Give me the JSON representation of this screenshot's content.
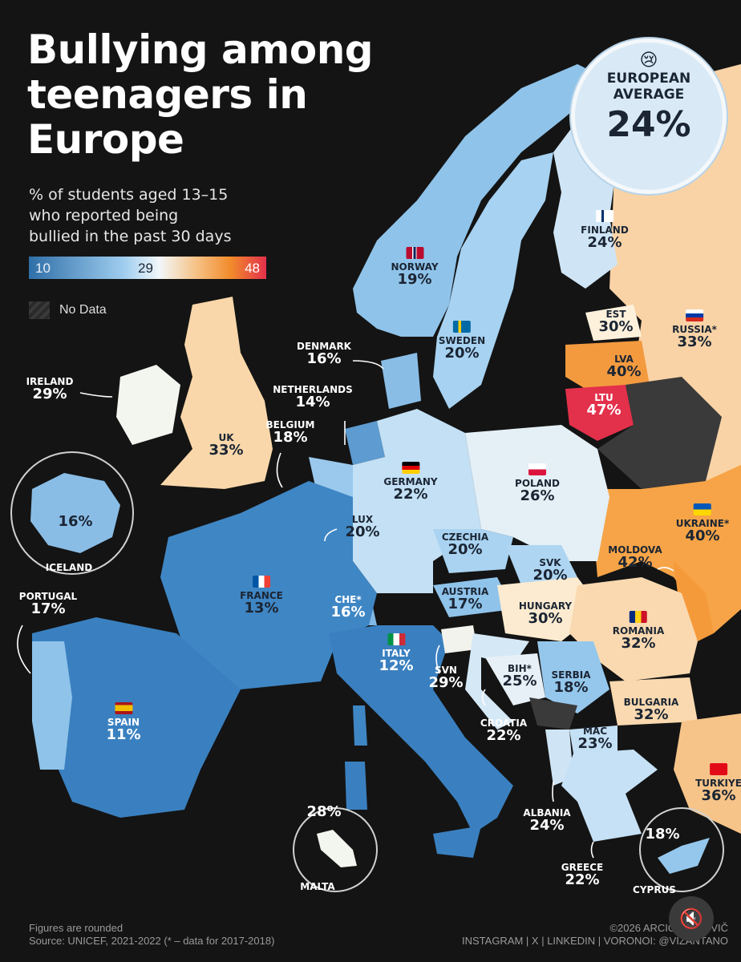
{
  "title_lines": [
    "Bullying among",
    "teenagers in",
    "Europe"
  ],
  "subtitle_lines": [
    "% of students aged 13–15",
    "who reported being",
    "bullied in the past 30 days"
  ],
  "scale": {
    "min": "10",
    "mid": "29",
    "max": "48"
  },
  "no_data_label": "No Data",
  "badge": {
    "emoji": "😢",
    "line1": "EUROPEAN",
    "line2": "AVERAGE",
    "value": "24%"
  },
  "countries": {
    "norway": {
      "name": "NORWAY",
      "value": "19%"
    },
    "sweden": {
      "name": "SWEDEN",
      "value": "20%"
    },
    "finland": {
      "name": "FINLAND",
      "value": "24%"
    },
    "est": {
      "name": "EST",
      "value": "30%"
    },
    "lva": {
      "name": "LVA",
      "value": "40%"
    },
    "ltu": {
      "name": "LTU",
      "value": "47%"
    },
    "russia": {
      "name": "RUSSIA*",
      "value": "33%"
    },
    "denmark": {
      "name": "DENMARK",
      "value": "16%"
    },
    "netherlands": {
      "name": "NETHERLANDS",
      "value": "14%"
    },
    "belgium": {
      "name": "BELGIUM",
      "value": "18%"
    },
    "ireland": {
      "name": "IRELAND",
      "value": "29%"
    },
    "uk": {
      "name": "UK",
      "value": "33%"
    },
    "iceland": {
      "name": "ICELAND",
      "value": "16%"
    },
    "germany": {
      "name": "GERMANY",
      "value": "22%"
    },
    "poland": {
      "name": "POLAND",
      "value": "26%"
    },
    "lux": {
      "name": "LUX",
      "value": "20%"
    },
    "czechia": {
      "name": "CZECHIA",
      "value": "20%"
    },
    "ukraine": {
      "name": "UKRAINE*",
      "value": "40%"
    },
    "moldova": {
      "name": "MOLDOVA",
      "value": "42%"
    },
    "svk": {
      "name": "SVK",
      "value": "20%"
    },
    "france": {
      "name": "FRANCE",
      "value": "13%"
    },
    "austria": {
      "name": "AUSTRIA",
      "value": "17%"
    },
    "che": {
      "name": "CHE*",
      "value": "16%"
    },
    "hungary": {
      "name": "HUNGARY",
      "value": "30%"
    },
    "romania": {
      "name": "ROMANIA",
      "value": "32%"
    },
    "portugal": {
      "name": "PORTUGAL",
      "value": "17%"
    },
    "italy": {
      "name": "ITALY",
      "value": "12%"
    },
    "svn": {
      "name": "SVN",
      "value": "29%"
    },
    "bih": {
      "name": "BIH*",
      "value": "25%"
    },
    "serbia": {
      "name": "SERBIA",
      "value": "18%"
    },
    "spain": {
      "name": "SPAIN",
      "value": "11%"
    },
    "croatia": {
      "name": "CROATIA",
      "value": "22%"
    },
    "bulgaria": {
      "name": "BULGARIA",
      "value": "32%"
    },
    "mac": {
      "name": "MAC",
      "value": "23%"
    },
    "turkiye": {
      "name": "TURKIYE",
      "value": "36%"
    },
    "albania": {
      "name": "ALBANIA",
      "value": "24%"
    },
    "malta": {
      "name": "MALTA",
      "value": "28%"
    },
    "greece": {
      "name": "GREECE",
      "value": "22%"
    },
    "cyprus": {
      "name": "CYPRUS",
      "value": "18%"
    }
  },
  "footer": {
    "note": "Figures are rounded",
    "source": "Source: UNICEF, 2021-2022 (* – data for 2017-2018)",
    "credit": "©2026 ARCIOM A...OVIČ",
    "socials": "INSTAGRAM | X | LINKEDIN | VORONOI: @VIZANTANO"
  },
  "colors": {
    "background": "#141414",
    "low": "#2f6fa8",
    "mid": "#f2f7fa",
    "high": "#e3304b"
  }
}
